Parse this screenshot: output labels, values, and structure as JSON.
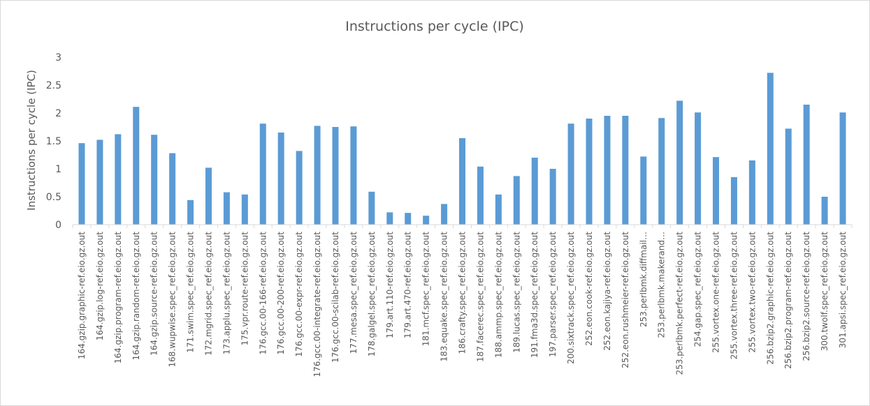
{
  "chart_data": {
    "type": "bar",
    "title": "Instructions per cycle (IPC)",
    "xlabel": "",
    "ylabel": "Instructions per cycle (IPC)",
    "ylim": [
      0,
      3
    ],
    "yticks": [
      "0",
      "0.5",
      "1",
      "1.5",
      "2",
      "2.5",
      "3"
    ],
    "grid": false,
    "legend": "none",
    "bar_color": "#5b9bd5",
    "categories": [
      "164.gzip.graphic-ref.eio.gz.out",
      "164.gzip.log-ref.eio.gz.out",
      "164.gzip.program-ref.eio.gz.out",
      "164.gzip.random-ref.eio.gz.out",
      "164.gzip.source-ref.eio.gz.out",
      "168.wupwise.spec_ref.eio.gz.out",
      "171.swim.spec_ref.eio.gz.out",
      "172.mgrid.spec_ref.eio.gz.out",
      "173.applu.spec_ref.eio.gz.out",
      "175.vpr.route-ref.eio.gz.out",
      "176.gcc.00-166-ref.eio.gz.out",
      "176.gcc.00-200-ref.eio.gz.out",
      "176.gcc.00-expr-ref.eio.gz.out",
      "176.gcc.00-integrate-ref.eio.gz.out",
      "176.gcc.00-scilab-ref.eio.gz.out",
      "177.mesa.spec_ref.eio.gz.out",
      "178.galgel.spec_ref.eio.gz.out",
      "179.art.110-ref.eio.gz.out",
      "179.art.470-ref.eio.gz.out",
      "181.mcf.spec_ref.eio.gz.out",
      "183.equake.spec_ref.eio.gz.out",
      "186.crafty.spec_ref.eio.gz.out",
      "187.facerec.spec_ref.eio.gz.out",
      "188.ammp.spec_ref.eio.gz.out",
      "189.lucas.spec_ref.eio.gz.out",
      "191.fma3d.spec_ref.eio.gz.out",
      "197.parser.spec_ref.eio.gz.out",
      "200.sixtrack.spec_ref.eio.gz.out",
      "252.eon.cook-ref.eio.gz.out",
      "252.eon.kajiya-ref.eio.gz.out",
      "252.eon.rushmeier-ref.eio.gz.out",
      "253.perlbmk.diffmail…",
      "253.perlbmk.makerand…",
      "253.perlbmk.perfect-ref.eio.gz.out",
      "254.gap.spec_ref.eio.gz.out",
      "255.vortex.one-ref.eio.gz.out",
      "255.vortex.three-ref.eio.gz.out",
      "255.vortex.two-ref.eio.gz.out",
      "256.bzip2.graphic-ref.eio.gz.out",
      "256.bzip2.program-ref.eio.gz.out",
      "256.bzip2.source-ref.eio.gz.out",
      "300.twolf.spec_ref.eio.gz.out",
      "301.apsi.spec_ref.eio.gz.out"
    ],
    "values": [
      1.46,
      1.52,
      1.62,
      2.11,
      1.61,
      1.28,
      0.44,
      1.02,
      0.58,
      0.54,
      1.81,
      1.65,
      1.32,
      1.77,
      1.75,
      1.76,
      0.59,
      0.22,
      0.21,
      0.16,
      0.37,
      1.55,
      1.04,
      0.54,
      0.87,
      1.2,
      1.0,
      1.81,
      1.9,
      1.95,
      1.95,
      1.22,
      1.91,
      2.22,
      2.01,
      1.21,
      0.85,
      1.15,
      2.72,
      1.72,
      2.15,
      0.5,
      2.01
    ]
  }
}
